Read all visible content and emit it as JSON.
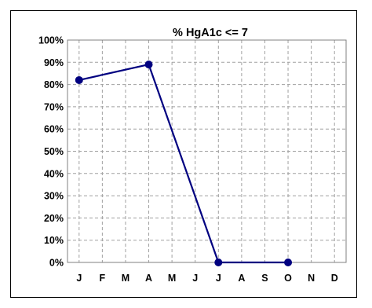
{
  "chart_data": {
    "type": "line",
    "title": "%  HgA1c <= 7",
    "xlabel": "",
    "ylabel": "",
    "categories": [
      "J",
      "F",
      "M",
      "A",
      "M",
      "J",
      "J",
      "A",
      "S",
      "O",
      "N",
      "D"
    ],
    "series": [
      {
        "values": [
          82,
          null,
          null,
          89,
          null,
          null,
          0,
          null,
          null,
          0,
          null,
          null
        ],
        "color": "#000080"
      }
    ],
    "y_tick_labels": [
      "0%",
      "10%",
      "20%",
      "30%",
      "40%",
      "50%",
      "60%",
      "70%",
      "80%",
      "90%",
      "100%"
    ],
    "ylim": [
      0,
      100
    ],
    "grid": true,
    "grid_style": "dashed",
    "legend": "none"
  }
}
